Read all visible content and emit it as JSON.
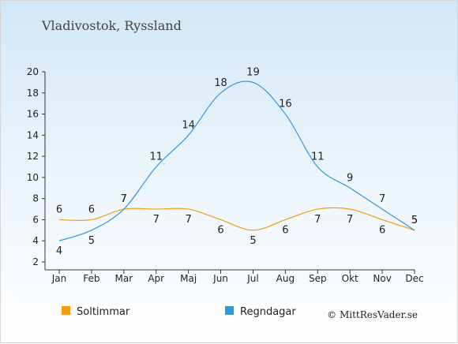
{
  "title": "Vladivostok, Ryssland",
  "credit": "© MittResVader.se",
  "chart_data": {
    "type": "line",
    "title": "Vladivostok, Ryssland",
    "categories": [
      "Jan",
      "Feb",
      "Mar",
      "Apr",
      "Maj",
      "Jun",
      "Jul",
      "Aug",
      "Sep",
      "Okt",
      "Nov",
      "Dec"
    ],
    "ylim": [
      2,
      20
    ],
    "yticks": [
      2,
      4,
      6,
      8,
      10,
      12,
      14,
      16,
      18,
      20
    ],
    "grid": false,
    "legend_position": "bottom-left",
    "series": [
      {
        "name": "Soltimmar",
        "color": "#f39c12",
        "values": [
          6,
          6,
          7,
          7,
          7,
          6,
          5,
          6,
          7,
          7,
          6,
          5
        ]
      },
      {
        "name": "Regndagar",
        "color": "#3498db",
        "values": [
          4,
          5,
          7,
          11,
          14,
          18,
          19,
          16,
          11,
          9,
          7,
          5
        ]
      }
    ]
  }
}
